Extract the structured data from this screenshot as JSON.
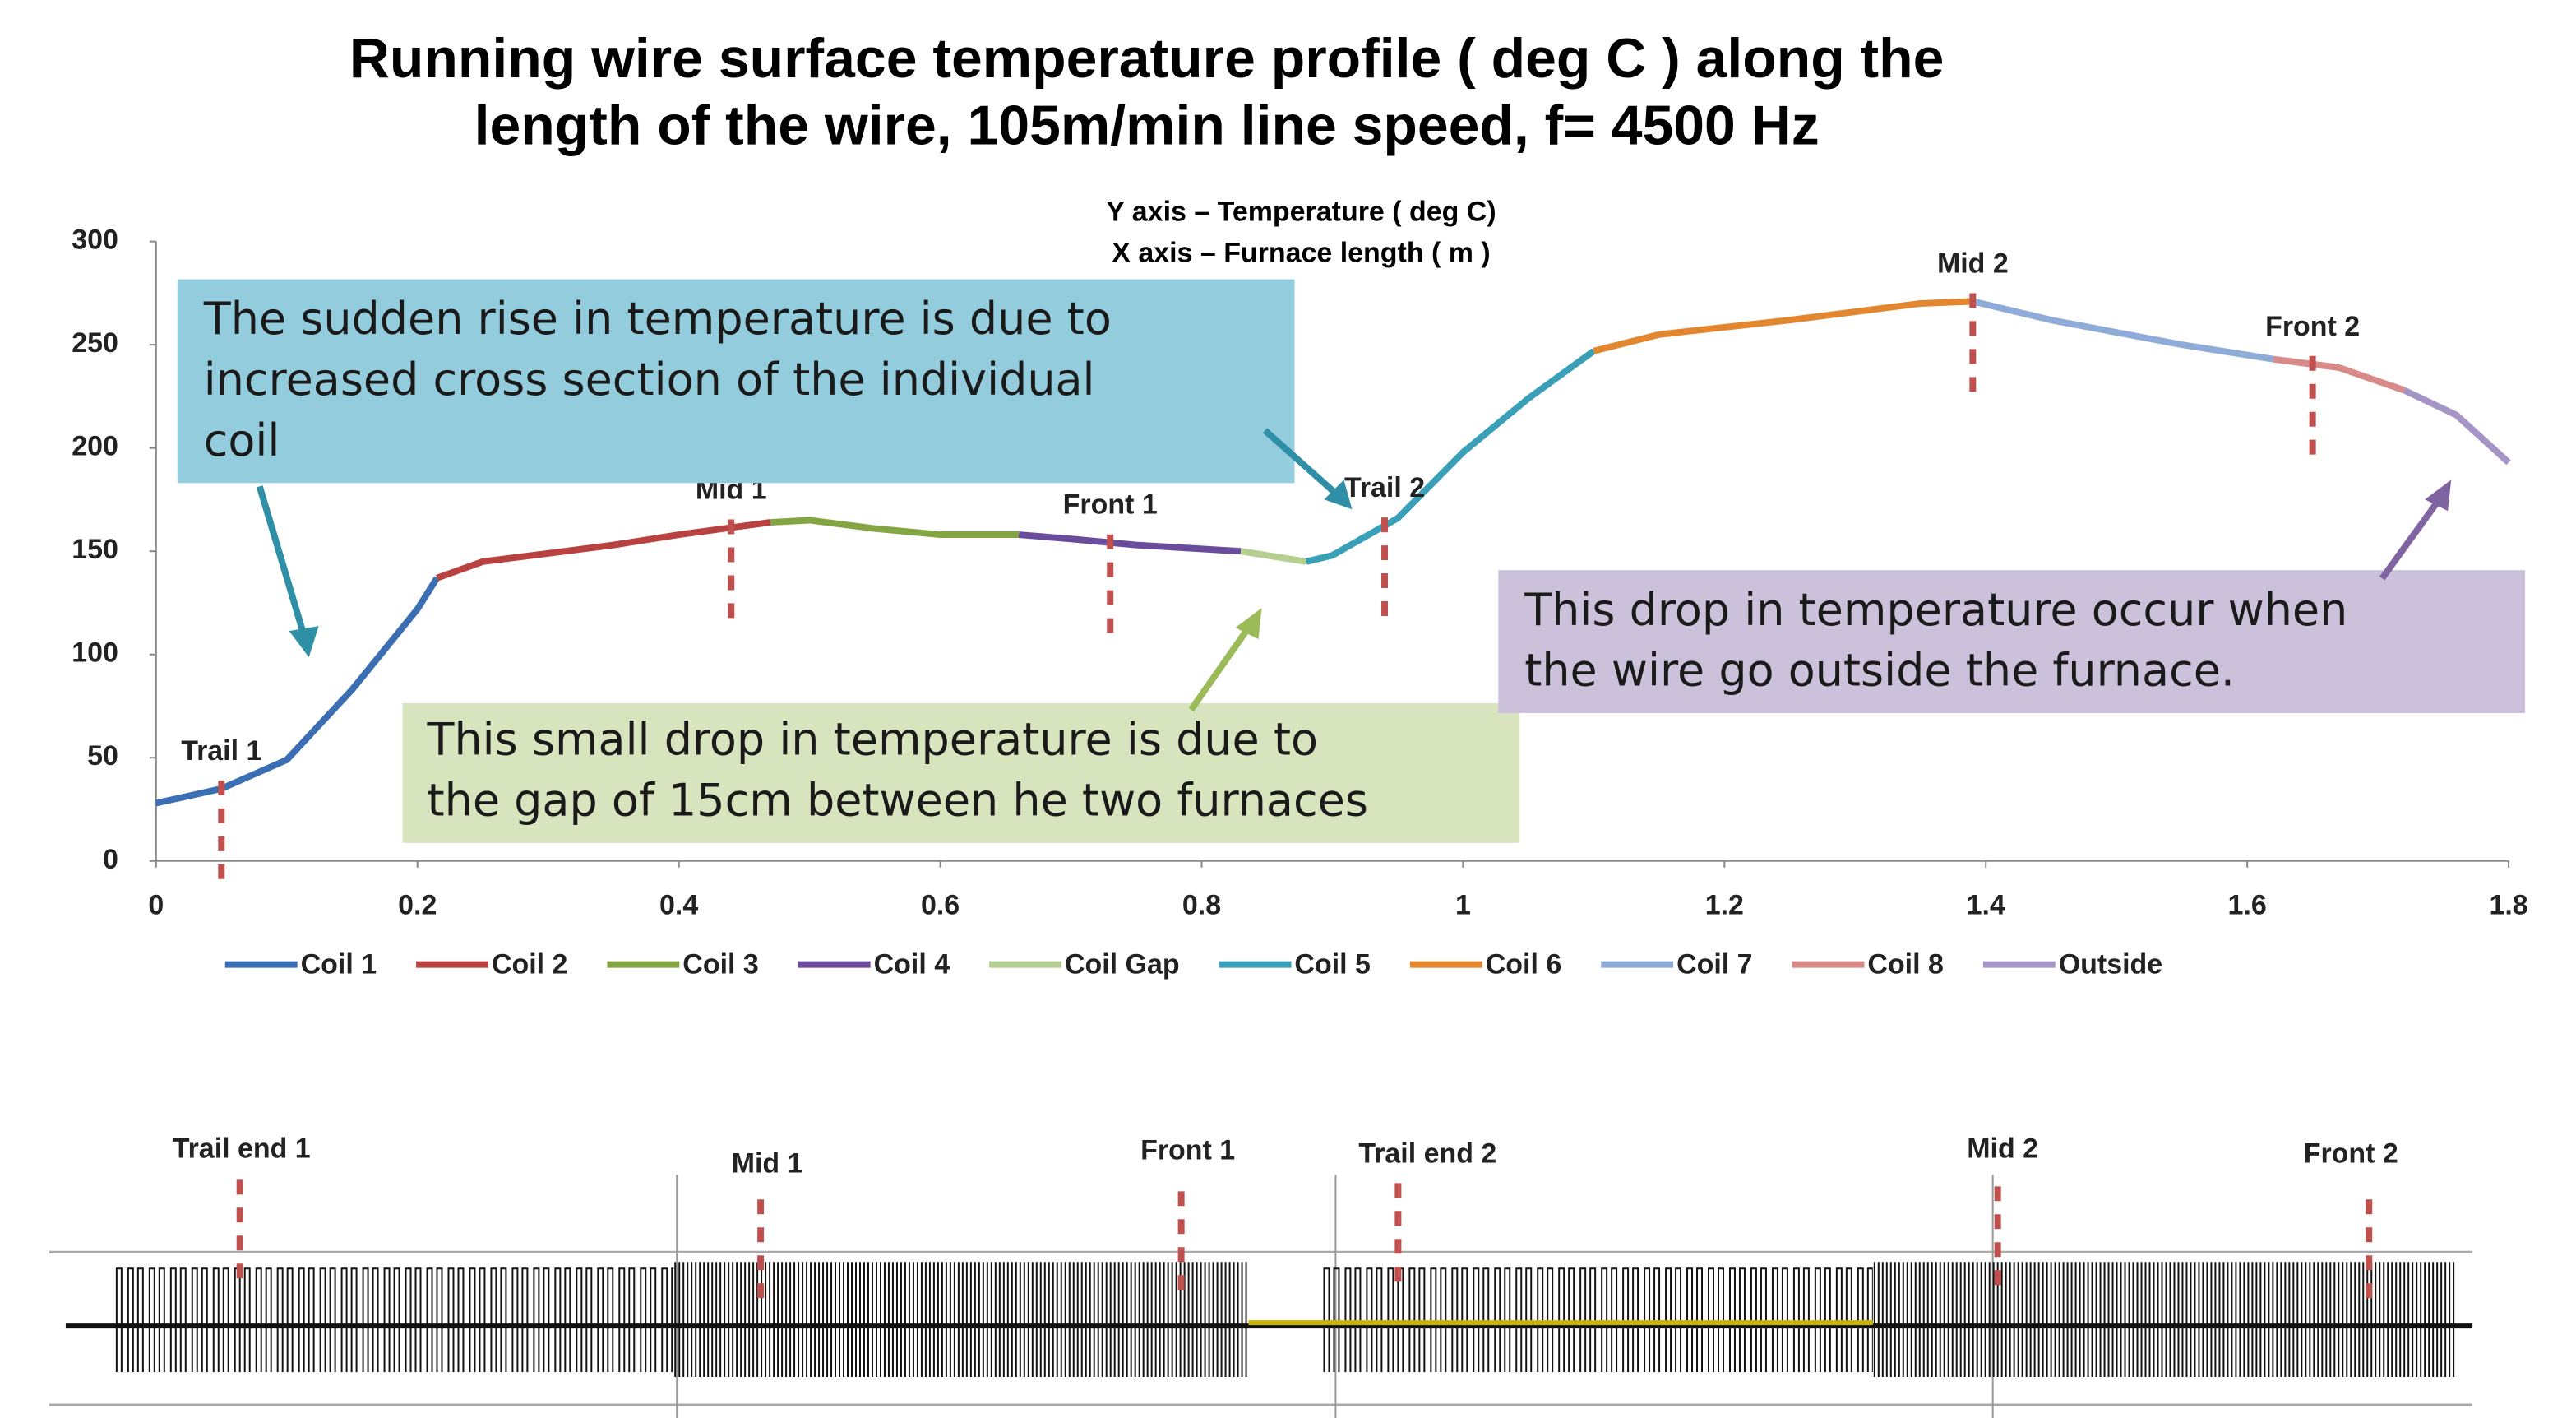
{
  "chart_data": {
    "type": "line",
    "title": [
      "Running wire surface temperature profile ( deg C ) along the",
      "length of the wire, 105m/min line speed, f= 4500 Hz"
    ],
    "axis_notes": [
      "Y axis – Temperature ( deg C)",
      "X axis – Furnace length ( m )"
    ],
    "xlim": [
      0,
      1.8
    ],
    "ylim": [
      0,
      300
    ],
    "xticks": [
      0,
      0.2,
      0.4,
      0.6,
      0.8,
      1,
      1.2,
      1.4,
      1.6,
      1.8
    ],
    "yticks": [
      0,
      50,
      100,
      150,
      200,
      250,
      300
    ],
    "grid": false,
    "legend": "bottom",
    "series": [
      {
        "name": "Coil 1",
        "color": "#3c6eb4",
        "x": [
          0,
          0.05,
          0.1,
          0.15,
          0.2,
          0.215
        ],
        "values": [
          28,
          35,
          49,
          83,
          122,
          137
        ]
      },
      {
        "name": "Coil 2",
        "color": "#b84240",
        "x": [
          0.215,
          0.25,
          0.3,
          0.35,
          0.4,
          0.47
        ],
        "values": [
          137,
          145,
          149,
          153,
          158,
          164
        ]
      },
      {
        "name": "Coil 3",
        "color": "#84a543",
        "x": [
          0.47,
          0.5,
          0.55,
          0.6,
          0.66
        ],
        "values": [
          164,
          165,
          161,
          158,
          158
        ]
      },
      {
        "name": "Coil 4",
        "color": "#6a4c9c",
        "x": [
          0.66,
          0.7,
          0.75,
          0.83
        ],
        "values": [
          158,
          156,
          153,
          150
        ]
      },
      {
        "name": "Coil Gap",
        "color": "#b4cf8f",
        "x": [
          0.83,
          0.88
        ],
        "values": [
          150,
          145
        ]
      },
      {
        "name": "Coil 5",
        "color": "#3aa0b8",
        "x": [
          0.88,
          0.9,
          0.95,
          1.0,
          1.05,
          1.1
        ],
        "values": [
          145,
          148,
          166,
          198,
          224,
          247
        ]
      },
      {
        "name": "Coil 6",
        "color": "#e2872f",
        "x": [
          1.1,
          1.15,
          1.25,
          1.35,
          1.39
        ],
        "values": [
          247,
          255,
          262,
          270,
          271
        ]
      },
      {
        "name": "Coil 7",
        "color": "#8fabd8",
        "x": [
          1.39,
          1.45,
          1.55,
          1.62
        ],
        "values": [
          271,
          262,
          250,
          243
        ]
      },
      {
        "name": "Coil 8",
        "color": "#d88a88",
        "x": [
          1.62,
          1.67,
          1.72
        ],
        "values": [
          243,
          239,
          228
        ]
      },
      {
        "name": "Outside",
        "color": "#a594c6",
        "x": [
          1.72,
          1.76,
          1.8
        ],
        "values": [
          228,
          216,
          193
        ]
      }
    ],
    "markers": [
      {
        "label": "Trail 1",
        "x": 0.05
      },
      {
        "label": "Mid 1",
        "x": 0.44
      },
      {
        "label": "Front 1",
        "x": 0.73
      },
      {
        "label": "Trail 2",
        "x": 0.94
      },
      {
        "label": "Mid 2",
        "x": 1.39
      },
      {
        "label": "Front 2",
        "x": 1.65
      }
    ],
    "callouts": [
      {
        "lines": [
          "The sudden rise in temperature is due to",
          "increased cross section of the individual",
          "coil"
        ],
        "color": "#93cddd"
      },
      {
        "lines": [
          "This small drop in temperature is due to",
          "the gap of 15cm between he two furnaces"
        ],
        "color": "#d7e4bd"
      },
      {
        "lines": [
          "This drop in temperature occur when",
          "the wire go outside the furnace."
        ],
        "color": "#ccc1da"
      }
    ]
  },
  "waveform": {
    "labels": [
      "Trail end 1",
      "Mid 1",
      "Front 1",
      "Trail end 2",
      "Mid 2",
      "Front 2"
    ]
  }
}
